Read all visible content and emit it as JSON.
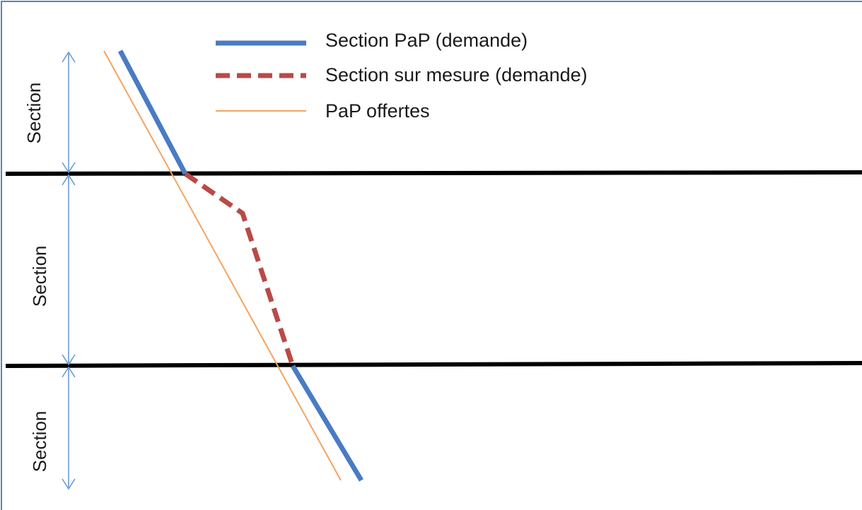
{
  "legend": {
    "items": [
      {
        "label": "Section PaP (demande)",
        "color": "#4a7bc4",
        "style": "solid-thick"
      },
      {
        "label": "Section sur mesure (demande)",
        "color": "#b94a48",
        "style": "dashed-thick"
      },
      {
        "label": "PaP offertes",
        "color": "#f4a460",
        "style": "solid-thin"
      }
    ]
  },
  "sections": {
    "labels": [
      "Section",
      "Section",
      "Section"
    ]
  },
  "colors": {
    "frame": "#5b84b1",
    "boundary": "#000000",
    "dimension_arrow": "#6b9bd1"
  }
}
